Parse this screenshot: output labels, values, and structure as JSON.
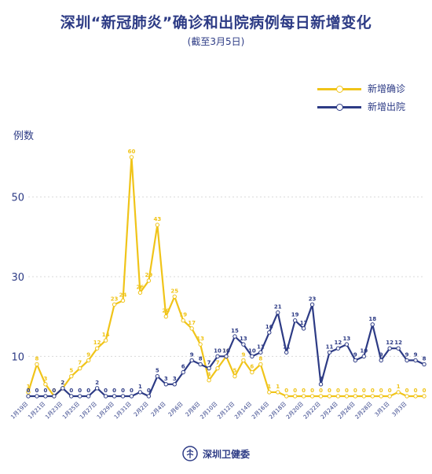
{
  "header": {
    "title": "深圳“新冠肺炎”确诊和出院病例每日新增变化",
    "subtitle": "(截至3月5日)"
  },
  "footer": {
    "source": "深圳卫健委"
  },
  "colors": {
    "confirmed": "#f0c419",
    "discharged": "#2d3b85",
    "grid": "#d9d9d9",
    "text": "#2d3b85"
  },
  "chart_data": {
    "type": "line",
    "title": "深圳“新冠肺炎”确诊和出院病例每日新增变化",
    "ylabel": "例数",
    "xlabel": "",
    "ylim": [
      0,
      60
    ],
    "yticks": [
      10,
      30,
      50
    ],
    "grid": true,
    "legend_position": "top-right",
    "x": [
      "1月19日",
      "1月20日",
      "1月21日",
      "1月22日",
      "1月23日",
      "1月24日",
      "1月25日",
      "1月26日",
      "1月27日",
      "1月28日",
      "1月29日",
      "1月30日",
      "1月31日",
      "2月1日",
      "2月2日",
      "2月3日",
      "2月4日",
      "2月5日",
      "2月6日",
      "2月7日",
      "2月8日",
      "2月9日",
      "2月10日",
      "2月11日",
      "2月12日",
      "2月13日",
      "2月14日",
      "2月15日",
      "2月16日",
      "2月17日",
      "2月18日",
      "2月19日",
      "2月20日",
      "2月21日",
      "2月22日",
      "2月23日",
      "2月24日",
      "2月25日",
      "2月26日",
      "2月27日",
      "2月28日",
      "2月29日",
      "3月1日",
      "3月2日",
      "3月3日",
      "3月4日",
      "3月5日"
    ],
    "xtick_labels": [
      "1月19日",
      "1月21日",
      "1月23日",
      "1月25日",
      "1月27日",
      "1月29日",
      "1月31日",
      "2月2日",
      "2月4日",
      "2月6日",
      "2月8日",
      "2月10日",
      "2月12日",
      "2月14日",
      "2月16日",
      "2月18日",
      "2月20日",
      "2月22日",
      "2月24日",
      "2月26日",
      "2月28日",
      "3月1日",
      "3月3日"
    ],
    "series": [
      {
        "name": "新增确诊",
        "color": "#f0c419",
        "values": [
          1,
          8,
          3,
          0,
          2,
          5,
          7,
          9,
          12,
          14,
          23,
          24,
          60,
          26,
          29,
          43,
          20,
          25,
          19,
          17,
          13,
          4,
          7,
          10,
          5,
          9,
          6,
          8,
          1,
          1,
          0,
          0,
          0,
          0,
          0,
          0,
          0,
          0,
          0,
          0,
          0,
          0,
          0,
          1,
          0,
          0,
          0
        ]
      },
      {
        "name": "新增出院",
        "color": "#2d3b85",
        "values": [
          0,
          0,
          0,
          0,
          2,
          0,
          0,
          0,
          2,
          0,
          0,
          0,
          0,
          1,
          0,
          5,
          3,
          3,
          6,
          9,
          8,
          7,
          10,
          10,
          15,
          13,
          10,
          11,
          16,
          21,
          11,
          19,
          17,
          23,
          3,
          11,
          12,
          13,
          9,
          10,
          18,
          9,
          12,
          12,
          9,
          9,
          8
        ]
      }
    ]
  }
}
